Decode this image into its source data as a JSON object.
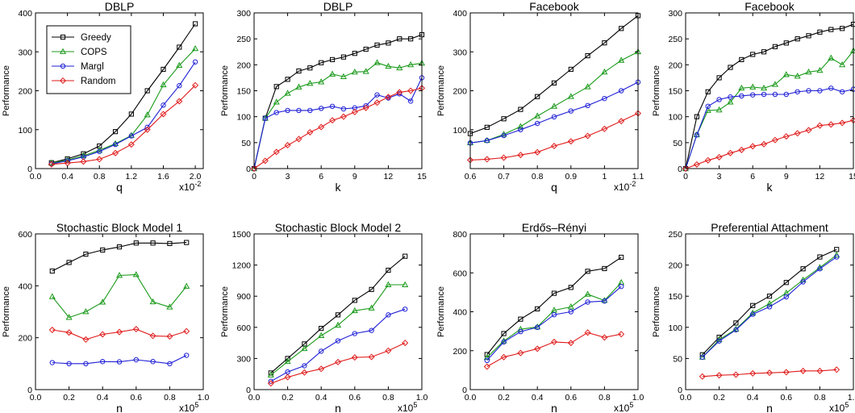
{
  "legend_entries": [
    "Greedy",
    "COPS",
    "Margl",
    "Random"
  ],
  "chart_data": [
    {
      "type": "line",
      "title": "DBLP",
      "xlabel": "q",
      "ylabel": "Performance",
      "x_multiplier_label": "x10",
      "x_multiplier_exp": "-2",
      "xlim": [
        0.0,
        2.1
      ],
      "ylim": [
        0,
        400
      ],
      "xticks": [
        0,
        0.4,
        0.8,
        1.2,
        1.6,
        2.0
      ],
      "xticklabels": [
        "0.0",
        "0.4",
        "0.8",
        "1.2",
        "1.6",
        "2.0"
      ],
      "yticks": [
        0,
        100,
        200,
        300,
        400
      ],
      "yticklabels": [
        "0",
        "100",
        "200",
        "300",
        "400"
      ],
      "legend": "top-left",
      "x": [
        0.2,
        0.4,
        0.6,
        0.8,
        1.0,
        1.2,
        1.4,
        1.6,
        1.8,
        2.0
      ],
      "series": [
        {
          "name": "Greedy",
          "color": "#000000",
          "marker": "square",
          "values": [
            15,
            25,
            38,
            58,
            95,
            140,
            200,
            255,
            312,
            372
          ]
        },
        {
          "name": "COPS",
          "color": "#1a9a1a",
          "marker": "triangle",
          "values": [
            14,
            22,
            33,
            47,
            64,
            85,
            138,
            215,
            265,
            308
          ]
        },
        {
          "name": "Margl",
          "color": "#1f1fd6",
          "marker": "circle",
          "values": [
            12,
            20,
            30,
            44,
            62,
            84,
            106,
            163,
            213,
            274
          ]
        },
        {
          "name": "Random",
          "color": "#e01b1b",
          "marker": "diamond",
          "values": [
            11,
            14,
            18,
            24,
            40,
            62,
            100,
            140,
            173,
            214
          ]
        }
      ]
    },
    {
      "type": "line",
      "title": "DBLP",
      "xlabel": "k",
      "ylabel": "Performance",
      "xlim": [
        0,
        15
      ],
      "ylim": [
        0,
        300
      ],
      "xticks": [
        0,
        3,
        6,
        9,
        12,
        15
      ],
      "xticklabels": [
        "0",
        "3",
        "6",
        "9",
        "12",
        "15"
      ],
      "yticks": [
        0,
        50,
        100,
        150,
        200,
        250,
        300
      ],
      "yticklabels": [
        "0",
        "50",
        "100",
        "150",
        "200",
        "250",
        "300"
      ],
      "x": [
        0,
        1,
        2,
        3,
        4,
        5,
        6,
        7,
        8,
        9,
        10,
        11,
        12,
        13,
        14,
        15
      ],
      "series": [
        {
          "name": "Greedy",
          "color": "#000000",
          "marker": "square",
          "values": [
            0,
            97,
            158,
            172,
            188,
            194,
            204,
            210,
            215,
            222,
            230,
            238,
            242,
            250,
            250,
            258
          ]
        },
        {
          "name": "COPS",
          "color": "#1a9a1a",
          "marker": "triangle",
          "values": [
            0,
            97,
            128,
            145,
            157,
            164,
            167,
            182,
            177,
            186,
            187,
            204,
            197,
            194,
            200,
            203
          ]
        },
        {
          "name": "Margl",
          "color": "#1f1fd6",
          "marker": "circle",
          "values": [
            0,
            97,
            108,
            112,
            112,
            112,
            116,
            120,
            115,
            117,
            121,
            142,
            136,
            144,
            130,
            175
          ]
        },
        {
          "name": "Random",
          "color": "#e01b1b",
          "marker": "diamond",
          "values": [
            0,
            15,
            32,
            45,
            57,
            70,
            80,
            93,
            100,
            109,
            117,
            127,
            138,
            147,
            150,
            155
          ]
        }
      ]
    },
    {
      "type": "line",
      "title": "Facebook",
      "xlabel": "q",
      "ylabel": "Performance",
      "x_multiplier_label": "x10",
      "x_multiplier_exp": "-2",
      "xlim": [
        0.6,
        1.1
      ],
      "ylim": [
        0,
        400
      ],
      "xticks": [
        0.6,
        0.7,
        0.8,
        0.9,
        1.0,
        1.1
      ],
      "xticklabels": [
        "0.6",
        "0.7",
        "0.8",
        "0.9",
        "1",
        "1.1"
      ],
      "yticks": [
        100,
        200,
        300,
        400
      ],
      "yticklabels": [
        "100",
        "200",
        "300",
        "400"
      ],
      "x": [
        0.6,
        0.65,
        0.7,
        0.75,
        0.8,
        0.85,
        0.9,
        0.95,
        1.0,
        1.05,
        1.1
      ],
      "series": [
        {
          "name": "Greedy",
          "color": "#000000",
          "marker": "square",
          "values": [
            90,
            106,
            128,
            152,
            185,
            220,
            255,
            290,
            323,
            360,
            393
          ]
        },
        {
          "name": "COPS",
          "color": "#1a9a1a",
          "marker": "triangle",
          "values": [
            66,
            72,
            88,
            108,
            135,
            160,
            185,
            210,
            248,
            278,
            300
          ]
        },
        {
          "name": "Margl",
          "color": "#1f1fd6",
          "marker": "circle",
          "values": [
            66,
            72,
            85,
            100,
            116,
            133,
            148,
            162,
            180,
            200,
            222
          ]
        },
        {
          "name": "Random",
          "color": "#e01b1b",
          "marker": "diamond",
          "values": [
            22,
            24,
            28,
            35,
            42,
            58,
            70,
            84,
            102,
            122,
            142
          ]
        }
      ]
    },
    {
      "type": "line",
      "title": "Facebook",
      "xlabel": "k",
      "ylabel": "Performance",
      "xlim": [
        0,
        15
      ],
      "ylim": [
        0,
        300
      ],
      "xticks": [
        0,
        3,
        6,
        9,
        12,
        15
      ],
      "xticklabels": [
        "0",
        "3",
        "6",
        "9",
        "12",
        "15"
      ],
      "yticks": [
        0,
        50,
        100,
        150,
        200,
        250,
        300
      ],
      "yticklabels": [
        "0",
        "50",
        "100",
        "150",
        "200",
        "250",
        "300"
      ],
      "x": [
        0,
        1,
        2,
        3,
        4,
        5,
        6,
        7,
        8,
        9,
        10,
        11,
        12,
        13,
        14,
        15
      ],
      "series": [
        {
          "name": "Greedy",
          "color": "#000000",
          "marker": "square",
          "values": [
            0,
            100,
            148,
            175,
            195,
            210,
            220,
            225,
            235,
            242,
            250,
            256,
            263,
            268,
            270,
            278
          ]
        },
        {
          "name": "COPS",
          "color": "#1a9a1a",
          "marker": "triangle",
          "values": [
            0,
            65,
            112,
            113,
            128,
            155,
            157,
            155,
            162,
            181,
            178,
            186,
            189,
            213,
            200,
            227
          ]
        },
        {
          "name": "Margl",
          "color": "#1f1fd6",
          "marker": "circle",
          "values": [
            0,
            65,
            120,
            133,
            138,
            140,
            142,
            143,
            143,
            143,
            148,
            150,
            150,
            155,
            148,
            153
          ]
        },
        {
          "name": "Random",
          "color": "#e01b1b",
          "marker": "diamond",
          "values": [
            0,
            8,
            16,
            22,
            30,
            36,
            43,
            47,
            55,
            62,
            68,
            74,
            83,
            85,
            88,
            93
          ]
        }
      ]
    },
    {
      "type": "line",
      "title": "Stochastic Block Model 1",
      "xlabel": "n",
      "ylabel": "Performance",
      "x_multiplier_label": "x10",
      "x_multiplier_exp": "5",
      "xlim": [
        0,
        1.0
      ],
      "ylim": [
        0,
        600
      ],
      "xticks": [
        0,
        0.2,
        0.4,
        0.6,
        0.8,
        1.0
      ],
      "xticklabels": [
        "0.0",
        "0.2",
        "0.4",
        "0.6",
        "0.8",
        "1.0"
      ],
      "yticks": [
        0,
        200,
        400,
        600
      ],
      "yticklabels": [
        "0",
        "200",
        "400",
        "600"
      ],
      "x": [
        0.1,
        0.2,
        0.3,
        0.4,
        0.5,
        0.6,
        0.7,
        0.8,
        0.9
      ],
      "series": [
        {
          "name": "Greedy",
          "color": "#000000",
          "marker": "square",
          "values": [
            457,
            490,
            522,
            538,
            550,
            565,
            565,
            563,
            567
          ]
        },
        {
          "name": "COPS",
          "color": "#1a9a1a",
          "marker": "triangle",
          "values": [
            358,
            278,
            300,
            337,
            440,
            443,
            338,
            318,
            398
          ]
        },
        {
          "name": "Margl",
          "color": "#1f1fd6",
          "marker": "circle",
          "values": [
            104,
            100,
            100,
            108,
            107,
            115,
            108,
            100,
            132
          ]
        },
        {
          "name": "Random",
          "color": "#e01b1b",
          "marker": "diamond",
          "values": [
            230,
            220,
            193,
            213,
            222,
            233,
            207,
            205,
            225
          ]
        }
      ]
    },
    {
      "type": "line",
      "title": "Stochastic Block Model 2",
      "xlabel": "n",
      "ylabel": "Performance",
      "x_multiplier_label": "x10",
      "x_multiplier_exp": "5",
      "xlim": [
        0,
        1.0
      ],
      "ylim": [
        0,
        1500
      ],
      "xticks": [
        0,
        0.2,
        0.4,
        0.6,
        0.8,
        1.0
      ],
      "xticklabels": [
        "0.0",
        "0.2",
        "0.4",
        "0.6",
        "0.8",
        "1.0"
      ],
      "yticks": [
        0,
        300,
        600,
        900,
        1200,
        1500
      ],
      "yticklabels": [
        "0",
        "300",
        "600",
        "900",
        "1200",
        "1500"
      ],
      "x": [
        0.1,
        0.2,
        0.3,
        0.4,
        0.5,
        0.6,
        0.7,
        0.8,
        0.9
      ],
      "series": [
        {
          "name": "Greedy",
          "color": "#000000",
          "marker": "square",
          "values": [
            160,
            300,
            440,
            590,
            720,
            860,
            965,
            1150,
            1285
          ]
        },
        {
          "name": "COPS",
          "color": "#1a9a1a",
          "marker": "triangle",
          "values": [
            140,
            270,
            395,
            520,
            620,
            760,
            785,
            1010,
            1010
          ]
        },
        {
          "name": "Margl",
          "color": "#1f1fd6",
          "marker": "circle",
          "values": [
            80,
            170,
            230,
            370,
            470,
            540,
            570,
            720,
            775
          ]
        },
        {
          "name": "Random",
          "color": "#e01b1b",
          "marker": "diamond",
          "values": [
            60,
            120,
            165,
            200,
            265,
            310,
            315,
            375,
            450
          ]
        }
      ]
    },
    {
      "type": "line",
      "title": "Erdős–Rényi",
      "xlabel": "n",
      "ylabel": "Performance",
      "x_multiplier_label": "x10",
      "x_multiplier_exp": "5",
      "xlim": [
        0,
        1.0
      ],
      "ylim": [
        0,
        800
      ],
      "xticks": [
        0,
        0.2,
        0.4,
        0.6,
        0.8,
        1.0
      ],
      "xticklabels": [
        "0.0",
        "0.2",
        "0.4",
        "0.6",
        "0.8",
        "1.0"
      ],
      "yticks": [
        0,
        200,
        400,
        600,
        800
      ],
      "yticklabels": [
        "0",
        "200",
        "400",
        "600",
        "800"
      ],
      "x": [
        0.1,
        0.2,
        0.3,
        0.4,
        0.5,
        0.6,
        0.7,
        0.8,
        0.9
      ],
      "series": [
        {
          "name": "Greedy",
          "color": "#000000",
          "marker": "square",
          "values": [
            180,
            288,
            362,
            415,
            495,
            525,
            608,
            622,
            680
          ]
        },
        {
          "name": "COPS",
          "color": "#1a9a1a",
          "marker": "triangle",
          "values": [
            165,
            250,
            310,
            322,
            408,
            425,
            490,
            458,
            550
          ]
        },
        {
          "name": "Margl",
          "color": "#1f1fd6",
          "marker": "circle",
          "values": [
            150,
            245,
            298,
            320,
            385,
            400,
            450,
            455,
            530
          ]
        },
        {
          "name": "Random",
          "color": "#e01b1b",
          "marker": "diamond",
          "values": [
            118,
            167,
            188,
            210,
            245,
            240,
            293,
            268,
            285
          ]
        }
      ]
    },
    {
      "type": "line",
      "title": "Preferential Attachment",
      "xlabel": "n",
      "ylabel": "Performance",
      "x_multiplier_label": "x10",
      "x_multiplier_exp": "5",
      "xlim": [
        0,
        1.0
      ],
      "ylim": [
        0,
        250
      ],
      "xticks": [
        0,
        0.2,
        0.4,
        0.6,
        0.8,
        1.0
      ],
      "xticklabels": [
        "0.0",
        "0.2",
        "0.4",
        "0.6",
        "0.8",
        "1.0"
      ],
      "yticks": [
        0,
        50,
        100,
        150,
        200,
        250
      ],
      "yticklabels": [
        "0",
        "50",
        "100",
        "150",
        "200",
        "250"
      ],
      "x": [
        0.1,
        0.2,
        0.3,
        0.4,
        0.5,
        0.6,
        0.7,
        0.8,
        0.9
      ],
      "series": [
        {
          "name": "Greedy",
          "color": "#000000",
          "marker": "square",
          "values": [
            56,
            84,
            107,
            135,
            150,
            172,
            194,
            213,
            225
          ]
        },
        {
          "name": "COPS",
          "color": "#1a9a1a",
          "marker": "triangle",
          "values": [
            52,
            80,
            97,
            123,
            138,
            155,
            176,
            196,
            216
          ]
        },
        {
          "name": "Margl",
          "color": "#1f1fd6",
          "marker": "circle",
          "values": [
            52,
            78,
            96,
            121,
            133,
            149,
            173,
            194,
            213
          ]
        },
        {
          "name": "Random",
          "color": "#e01b1b",
          "marker": "diamond",
          "values": [
            21,
            23,
            24,
            26,
            27,
            28,
            30,
            30,
            32
          ]
        }
      ]
    }
  ]
}
